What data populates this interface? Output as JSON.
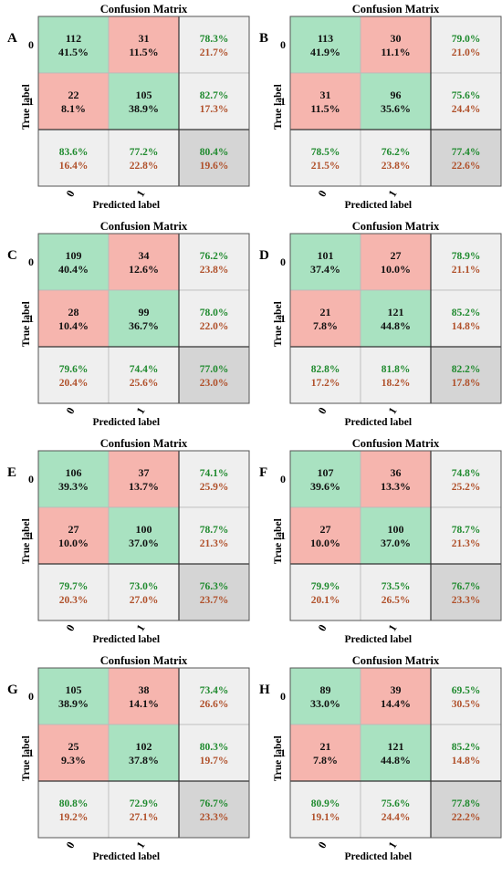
{
  "colors": {
    "correct_cell": "#a9e2c1",
    "wrong_cell": "#f6b5ae",
    "summary_cell": "#efefef",
    "overall_cell": "#d5d5d5",
    "good_text": "#1f8a2e",
    "bad_text": "#b0502a"
  },
  "chart_data": [
    {
      "type": "heatmap",
      "panel": "A",
      "title": "Confusion Matrix",
      "xlabel": "Predicted label",
      "ylabel": "True label",
      "classes": [
        "0",
        "1"
      ],
      "matrix": [
        [
          {
            "count": "112",
            "pct": "41.5%"
          },
          {
            "count": "31",
            "pct": "11.5%"
          }
        ],
        [
          {
            "count": "22",
            "pct": "8.1%"
          },
          {
            "count": "105",
            "pct": "38.9%"
          }
        ]
      ],
      "row_summary": [
        {
          "good": "78.3%",
          "bad": "21.7%"
        },
        {
          "good": "82.7%",
          "bad": "17.3%"
        }
      ],
      "col_summary": [
        {
          "good": "83.6%",
          "bad": "16.4%"
        },
        {
          "good": "77.2%",
          "bad": "22.8%"
        }
      ],
      "overall": {
        "good": "80.4%",
        "bad": "19.6%"
      }
    },
    {
      "type": "heatmap",
      "panel": "B",
      "title": "Confusion Matrix",
      "xlabel": "Predicted label",
      "ylabel": "True label",
      "classes": [
        "0",
        "1"
      ],
      "matrix": [
        [
          {
            "count": "113",
            "pct": "41.9%"
          },
          {
            "count": "30",
            "pct": "11.1%"
          }
        ],
        [
          {
            "count": "31",
            "pct": "11.5%"
          },
          {
            "count": "96",
            "pct": "35.6%"
          }
        ]
      ],
      "row_summary": [
        {
          "good": "79.0%",
          "bad": "21.0%"
        },
        {
          "good": "75.6%",
          "bad": "24.4%"
        }
      ],
      "col_summary": [
        {
          "good": "78.5%",
          "bad": "21.5%"
        },
        {
          "good": "76.2%",
          "bad": "23.8%"
        }
      ],
      "overall": {
        "good": "77.4%",
        "bad": "22.6%"
      }
    },
    {
      "type": "heatmap",
      "panel": "C",
      "title": "Confusion Matrix",
      "xlabel": "Predicted label",
      "ylabel": "True label",
      "classes": [
        "0",
        "1"
      ],
      "matrix": [
        [
          {
            "count": "109",
            "pct": "40.4%"
          },
          {
            "count": "34",
            "pct": "12.6%"
          }
        ],
        [
          {
            "count": "28",
            "pct": "10.4%"
          },
          {
            "count": "99",
            "pct": "36.7%"
          }
        ]
      ],
      "row_summary": [
        {
          "good": "76.2%",
          "bad": "23.8%"
        },
        {
          "good": "78.0%",
          "bad": "22.0%"
        }
      ],
      "col_summary": [
        {
          "good": "79.6%",
          "bad": "20.4%"
        },
        {
          "good": "74.4%",
          "bad": "25.6%"
        }
      ],
      "overall": {
        "good": "77.0%",
        "bad": "23.0%"
      }
    },
    {
      "type": "heatmap",
      "panel": "D",
      "title": "Confusion Matrix",
      "xlabel": "Predicted label",
      "ylabel": "True label",
      "classes": [
        "0",
        "1"
      ],
      "matrix": [
        [
          {
            "count": "101",
            "pct": "37.4%"
          },
          {
            "count": "27",
            "pct": "10.0%"
          }
        ],
        [
          {
            "count": "21",
            "pct": "7.8%"
          },
          {
            "count": "121",
            "pct": "44.8%"
          }
        ]
      ],
      "row_summary": [
        {
          "good": "78.9%",
          "bad": "21.1%"
        },
        {
          "good": "85.2%",
          "bad": "14.8%"
        }
      ],
      "col_summary": [
        {
          "good": "82.8%",
          "bad": "17.2%"
        },
        {
          "good": "81.8%",
          "bad": "18.2%"
        }
      ],
      "overall": {
        "good": "82.2%",
        "bad": "17.8%"
      }
    },
    {
      "type": "heatmap",
      "panel": "E",
      "title": "Confusion Matrix",
      "xlabel": "Predicted label",
      "ylabel": "True label",
      "classes": [
        "0",
        "1"
      ],
      "matrix": [
        [
          {
            "count": "106",
            "pct": "39.3%"
          },
          {
            "count": "37",
            "pct": "13.7%"
          }
        ],
        [
          {
            "count": "27",
            "pct": "10.0%"
          },
          {
            "count": "100",
            "pct": "37.0%"
          }
        ]
      ],
      "row_summary": [
        {
          "good": "74.1%",
          "bad": "25.9%"
        },
        {
          "good": "78.7%",
          "bad": "21.3%"
        }
      ],
      "col_summary": [
        {
          "good": "79.7%",
          "bad": "20.3%"
        },
        {
          "good": "73.0%",
          "bad": "27.0%"
        }
      ],
      "overall": {
        "good": "76.3%",
        "bad": "23.7%"
      }
    },
    {
      "type": "heatmap",
      "panel": "F",
      "title": "Confusion Matrix",
      "xlabel": "Predicted label",
      "ylabel": "True label",
      "classes": [
        "0",
        "1"
      ],
      "matrix": [
        [
          {
            "count": "107",
            "pct": "39.6%"
          },
          {
            "count": "36",
            "pct": "13.3%"
          }
        ],
        [
          {
            "count": "27",
            "pct": "10.0%"
          },
          {
            "count": "100",
            "pct": "37.0%"
          }
        ]
      ],
      "row_summary": [
        {
          "good": "74.8%",
          "bad": "25.2%"
        },
        {
          "good": "78.7%",
          "bad": "21.3%"
        }
      ],
      "col_summary": [
        {
          "good": "79.9%",
          "bad": "20.1%"
        },
        {
          "good": "73.5%",
          "bad": "26.5%"
        }
      ],
      "overall": {
        "good": "76.7%",
        "bad": "23.3%"
      }
    },
    {
      "type": "heatmap",
      "panel": "G",
      "title": "Confusion Matrix",
      "xlabel": "Predicted label",
      "ylabel": "True label",
      "classes": [
        "0",
        "1"
      ],
      "matrix": [
        [
          {
            "count": "105",
            "pct": "38.9%"
          },
          {
            "count": "38",
            "pct": "14.1%"
          }
        ],
        [
          {
            "count": "25",
            "pct": "9.3%"
          },
          {
            "count": "102",
            "pct": "37.8%"
          }
        ]
      ],
      "row_summary": [
        {
          "good": "73.4%",
          "bad": "26.6%"
        },
        {
          "good": "80.3%",
          "bad": "19.7%"
        }
      ],
      "col_summary": [
        {
          "good": "80.8%",
          "bad": "19.2%"
        },
        {
          "good": "72.9%",
          "bad": "27.1%"
        }
      ],
      "overall": {
        "good": "76.7%",
        "bad": "23.3%"
      }
    },
    {
      "type": "heatmap",
      "panel": "H",
      "title": "Confusion Matrix",
      "xlabel": "Predicted label",
      "ylabel": "True label",
      "classes": [
        "0",
        "1"
      ],
      "matrix": [
        [
          {
            "count": "89",
            "pct": "33.0%"
          },
          {
            "count": "39",
            "pct": "14.4%"
          }
        ],
        [
          {
            "count": "21",
            "pct": "7.8%"
          },
          {
            "count": "121",
            "pct": "44.8%"
          }
        ]
      ],
      "row_summary": [
        {
          "good": "69.5%",
          "bad": "30.5%"
        },
        {
          "good": "85.2%",
          "bad": "14.8%"
        }
      ],
      "col_summary": [
        {
          "good": "80.9%",
          "bad": "19.1%"
        },
        {
          "good": "75.6%",
          "bad": "24.4%"
        }
      ],
      "overall": {
        "good": "77.8%",
        "bad": "22.2%"
      }
    }
  ]
}
